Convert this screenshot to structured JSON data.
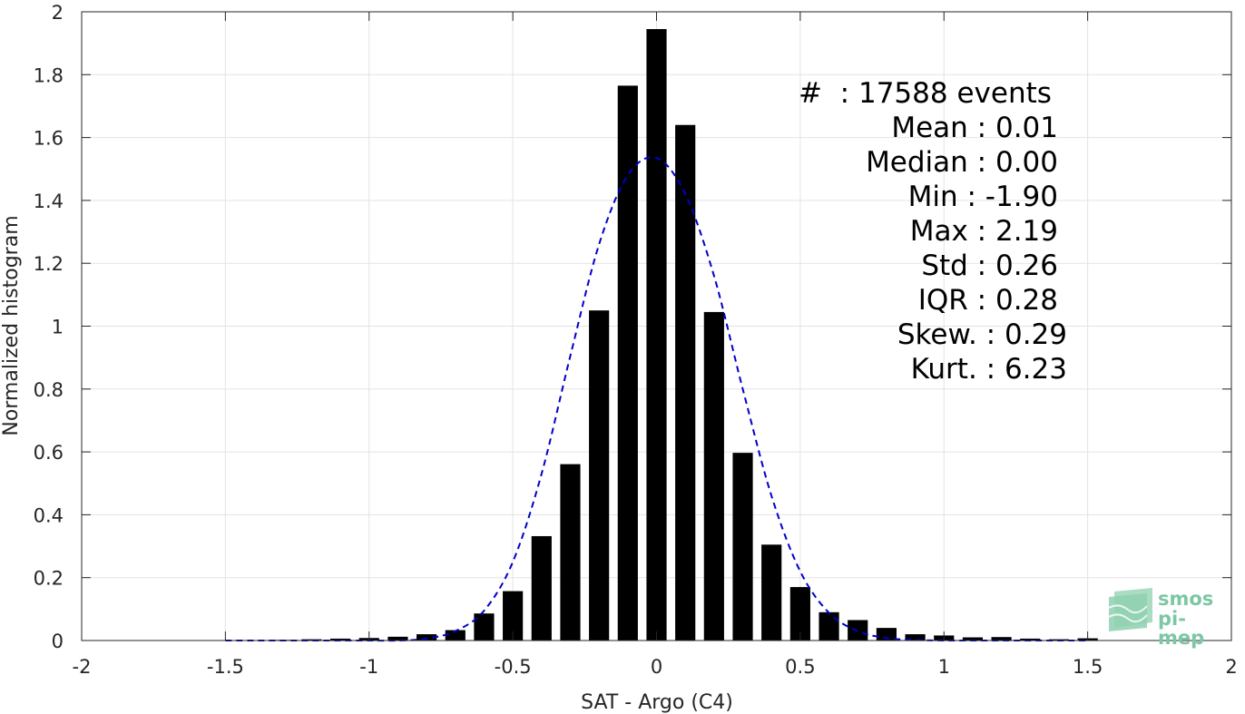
{
  "chart_data": {
    "type": "bar",
    "xlabel": "SAT - Argo (C4)",
    "ylabel": "Normalized histogram",
    "xlim": [
      -2,
      2
    ],
    "ylim": [
      0,
      2
    ],
    "xticks": [
      -2,
      -1.5,
      -1,
      -0.5,
      0,
      0.5,
      1,
      1.5,
      2
    ],
    "xtick_labels": [
      "-2",
      "-1.5",
      "-1",
      "-0.5",
      "0",
      "0.5",
      "1",
      "1.5",
      "2"
    ],
    "yticks": [
      0,
      0.2,
      0.4,
      0.6,
      0.8,
      1,
      1.2,
      1.4,
      1.6,
      1.8,
      2
    ],
    "ytick_labels": [
      "0",
      "0.2",
      "0.4",
      "0.6",
      "0.8",
      "1",
      "1.2",
      "1.4",
      "1.6",
      "1.8",
      "2"
    ],
    "grid": true,
    "bar_color": "#000000",
    "bar_width": 0.07,
    "bars": {
      "x": [
        -1.5,
        -1.4,
        -1.3,
        -1.2,
        -1.1,
        -1.0,
        -0.9,
        -0.8,
        -0.7,
        -0.6,
        -0.5,
        -0.4,
        -0.3,
        -0.2,
        -0.1,
        0.0,
        0.1,
        0.2,
        0.3,
        0.4,
        0.5,
        0.6,
        0.7,
        0.8,
        0.9,
        1.0,
        1.1,
        1.2,
        1.3,
        1.4,
        1.5
      ],
      "values": [
        0.001,
        0.001,
        0.002,
        0.004,
        0.006,
        0.008,
        0.012,
        0.02,
        0.033,
        0.086,
        0.157,
        0.332,
        0.561,
        1.05,
        1.765,
        1.945,
        1.64,
        1.045,
        0.597,
        0.305,
        0.17,
        0.09,
        0.065,
        0.04,
        0.02,
        0.016,
        0.01,
        0.011,
        0.006,
        0.004,
        0.007
      ]
    },
    "fit_curve": {
      "color": "#0000cc",
      "style": "dashed",
      "x": [
        -1.5,
        -1.4,
        -1.3,
        -1.2,
        -1.1,
        -1.0,
        -0.9,
        -0.8,
        -0.7,
        -0.6,
        -0.5,
        -0.4,
        -0.3,
        -0.2,
        -0.1,
        0.0,
        0.1,
        0.2,
        0.3,
        0.4,
        0.5,
        0.6,
        0.7,
        0.8,
        0.9,
        1.0,
        1.1,
        1.2,
        1.3,
        1.4,
        1.5
      ],
      "y": [
        0.0,
        0.0,
        0.0,
        0.0,
        0.0,
        0.0,
        0.0,
        0.006,
        0.03,
        0.095,
        0.25,
        0.53,
        0.905,
        1.26,
        1.48,
        1.535,
        1.42,
        1.16,
        0.8,
        0.46,
        0.22,
        0.088,
        0.03,
        0.008,
        0.002,
        0.0,
        0.0,
        0.0,
        0.0,
        0.0,
        0.0
      ]
    }
  },
  "stats": [
    "#  : 17588 events",
    "Mean : 0.01",
    "Median : 0.00",
    "Min : -1.90",
    "Max : 2.19",
    "Std : 0.26",
    "IQR : 0.28",
    "Skew. : 0.29",
    "Kurt. : 6.23"
  ],
  "logo": {
    "line1": "smos",
    "line2": "pi-mep",
    "color": "#7cc7a4"
  }
}
